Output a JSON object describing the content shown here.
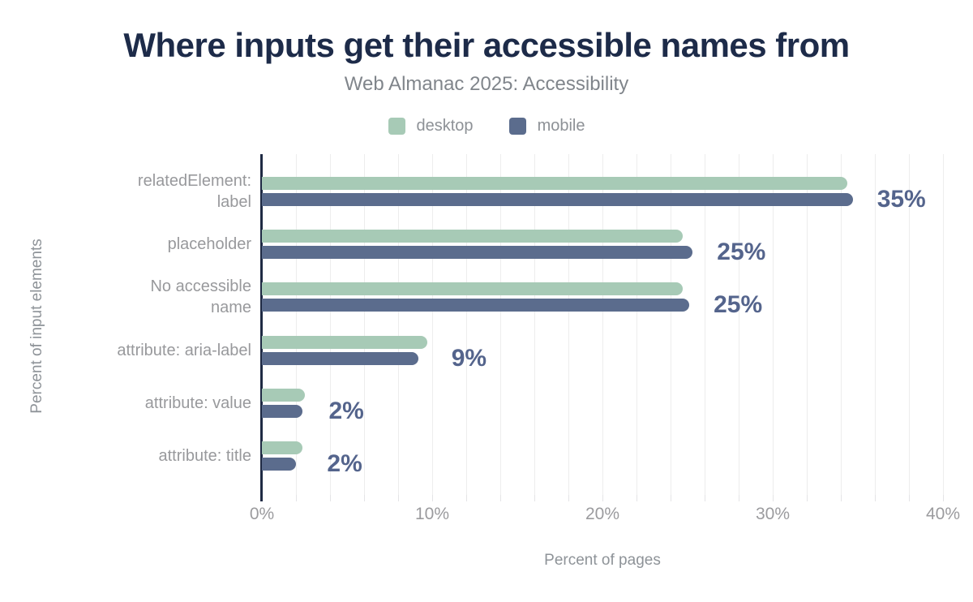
{
  "title": "Where inputs get their accessible names from",
  "subtitle": "Web Almanac 2025: Accessibility",
  "legend": [
    {
      "label": "desktop",
      "color": "#a7cab6"
    },
    {
      "label": "mobile",
      "color": "#5b6c8d"
    }
  ],
  "chart_data": {
    "type": "bar",
    "orientation": "horizontal",
    "title": "Where inputs get their accessible names from",
    "subtitle": "Web Almanac 2025: Accessibility",
    "categories": [
      "relatedElement:\nlabel",
      "placeholder",
      "No accessible\nname",
      "attribute: aria-label",
      "attribute: value",
      "attribute: title"
    ],
    "series": [
      {
        "name": "desktop",
        "color": "#a7cab6",
        "values": [
          34.4,
          24.7,
          24.7,
          9.7,
          2.5,
          2.4
        ]
      },
      {
        "name": "mobile",
        "color": "#5b6c8d",
        "values": [
          34.7,
          25.3,
          25.1,
          9.2,
          2.4,
          2.0
        ]
      }
    ],
    "value_labels": [
      "35%",
      "25%",
      "25%",
      "9%",
      "2%",
      "2%"
    ],
    "xlabel": "Percent of pages",
    "ylabel": "Percent of input elements",
    "x_ticks": [
      {
        "label": "0%",
        "value": 0
      },
      {
        "label": "10%",
        "value": 10
      },
      {
        "label": "20%",
        "value": 20
      },
      {
        "label": "30%",
        "value": 30
      },
      {
        "label": "40%",
        "value": 40
      }
    ],
    "xlim": [
      0,
      40
    ],
    "grid_step": 2,
    "grid_on": true,
    "legend_position": "top",
    "value_label_color": "#54648c",
    "axis_line_color": "#1f2a44",
    "title_color": "#1d2b49",
    "label_color": "#98999c"
  }
}
